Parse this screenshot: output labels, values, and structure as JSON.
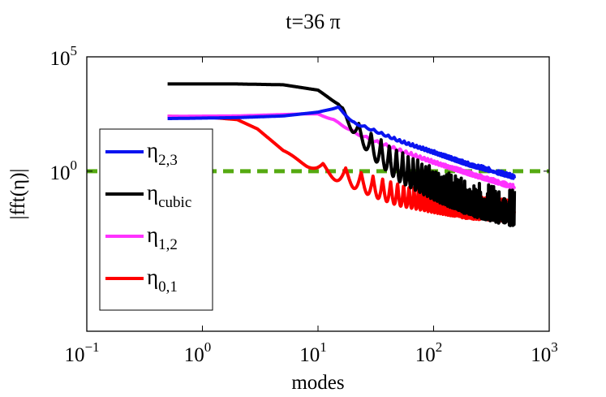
{
  "chart_data": {
    "type": "line",
    "title": "t=36 π",
    "xlabel": "modes",
    "ylabel": "|fft(η)|",
    "xscale": "log",
    "yscale": "log",
    "xlim": [
      0.1,
      1000
    ],
    "ylim": [
      1e-07,
      100000
    ],
    "x_ticks": [
      {
        "value": 0.1,
        "base": "10",
        "exp": "−1"
      },
      {
        "value": 1,
        "base": "10",
        "exp": "0"
      },
      {
        "value": 10,
        "base": "10",
        "exp": "1"
      },
      {
        "value": 100,
        "base": "10",
        "exp": "2"
      },
      {
        "value": 1000,
        "base": "10",
        "exp": "3"
      }
    ],
    "y_ticks": [
      {
        "value": 1,
        "base": "10",
        "exp": "0"
      },
      {
        "value": 100000,
        "base": "10",
        "exp": "5"
      }
    ],
    "legend_position": "left-middle",
    "reference_line": {
      "y": 1,
      "color": "#55aa11",
      "style": "dashed"
    },
    "series": [
      {
        "name": "η",
        "subscript": "2,3",
        "color": "#0a14f0",
        "x": [
          0.5,
          2,
          5,
          10,
          15,
          20,
          30,
          50,
          100,
          200,
          500
        ],
        "y": [
          200,
          220,
          260,
          380,
          650,
          150,
          70,
          25,
          8,
          2.5,
          0.7
        ],
        "noise": [
          0,
          0,
          0,
          0,
          0.04,
          0.08,
          0.1,
          0.12,
          0.15,
          0.18,
          0.2
        ]
      },
      {
        "name": "η",
        "subscript": "cubic",
        "color": "#000000",
        "x": [
          0.5,
          2,
          5,
          10,
          15,
          20,
          30,
          50,
          100,
          200,
          500
        ],
        "y": [
          6500,
          6500,
          6000,
          3500,
          900,
          200,
          40,
          8,
          1.5,
          0.4,
          0.15
        ],
        "noise": [
          0,
          0,
          0,
          0,
          0.05,
          0.7,
          1.2,
          1.5,
          1.6,
          1.7,
          1.8
        ]
      },
      {
        "name": "η",
        "subscript": "1,2",
        "color": "#ff33ff",
        "x": [
          0.5,
          2,
          5,
          10,
          15,
          20,
          30,
          50,
          100,
          200,
          500
        ],
        "y": [
          250,
          260,
          300,
          340,
          150,
          60,
          25,
          10,
          3,
          1,
          0.25
        ],
        "noise": [
          0,
          0,
          0,
          0.03,
          0.08,
          0.1,
          0.12,
          0.14,
          0.16,
          0.18,
          0.2
        ]
      },
      {
        "name": "η",
        "subscript": "0,1",
        "color": "#ff0000",
        "x": [
          0.5,
          1,
          2,
          3,
          5,
          8,
          12,
          20,
          30,
          50,
          100,
          200,
          500
        ],
        "y": [
          250,
          240,
          180,
          70,
          8,
          3,
          2,
          1.2,
          0.6,
          0.3,
          0.15,
          0.08,
          0.06
        ],
        "noise": [
          0,
          0,
          0,
          0,
          0,
          0.3,
          0.6,
          0.9,
          1.0,
          1.1,
          1.1,
          1.1,
          1.1
        ]
      }
    ]
  }
}
